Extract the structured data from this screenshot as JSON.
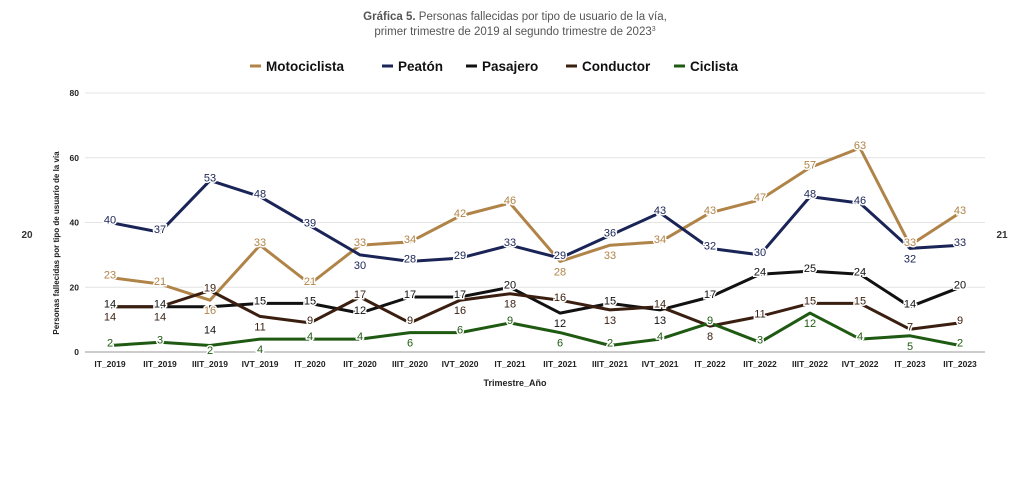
{
  "title_bold": "Gráfica 5.",
  "title_rest": " Personas fallecidas por tipo de usuario de la vía,",
  "subtitle": "primer trimestre de 2019 al segundo trimestre de 2023",
  "subtitle_sup": "3",
  "side_left": "20",
  "side_right": "21",
  "chart_data": {
    "type": "line",
    "title": "Gráfica 5. Personas fallecidas por tipo de usuario de la vía, primer trimestre de 2019 al segundo trimestre de 2023",
    "xlabel": "Trimestre_Año",
    "ylabel": "Personas fallecidas por tipo de usuario de la vía",
    "ylim": [
      0,
      80
    ],
    "yticks": [
      "0",
      "20",
      "40",
      "60",
      "80"
    ],
    "grid": true,
    "legend_position": "top",
    "categories": [
      "IT_2019",
      "IIT_2019",
      "IIIT_2019",
      "IVT_2019",
      "IT_2020",
      "IIT_2020",
      "IIIT_2020",
      "IVT_2020",
      "IT_2021",
      "IIT_2021",
      "IIIT_2021",
      "IVT_2021",
      "IT_2022",
      "IIT_2022",
      "IIIT_2022",
      "IVT_2022",
      "IT_2023",
      "IIT_2023"
    ],
    "series": [
      {
        "name": "Motociclista",
        "color": "#b08448",
        "values": [
          23,
          21,
          16,
          33,
          21,
          33,
          34,
          42,
          46,
          28,
          33,
          34,
          43,
          47,
          57,
          63,
          33,
          43
        ]
      },
      {
        "name": "Peatón",
        "color": "#1a2456",
        "values": [
          40,
          37,
          53,
          48,
          39,
          30,
          28,
          29,
          33,
          29,
          36,
          43,
          32,
          30,
          48,
          46,
          32,
          33
        ]
      },
      {
        "name": "Pasajero",
        "color": "#111111",
        "values": [
          14,
          14,
          14,
          15,
          15,
          12,
          17,
          17,
          20,
          12,
          15,
          13,
          17,
          24,
          25,
          24,
          14,
          20
        ]
      },
      {
        "name": "Conductor",
        "color": "#3a1f10",
        "values": [
          14,
          14,
          19,
          11,
          9,
          17,
          9,
          16,
          18,
          16,
          13,
          14,
          8,
          11,
          15,
          15,
          7,
          9
        ]
      },
      {
        "name": "Ciclista",
        "color": "#1f5a12",
        "values": [
          2,
          3,
          2,
          4,
          4,
          4,
          6,
          6,
          9,
          6,
          2,
          4,
          9,
          3,
          12,
          4,
          5,
          2
        ]
      }
    ]
  }
}
